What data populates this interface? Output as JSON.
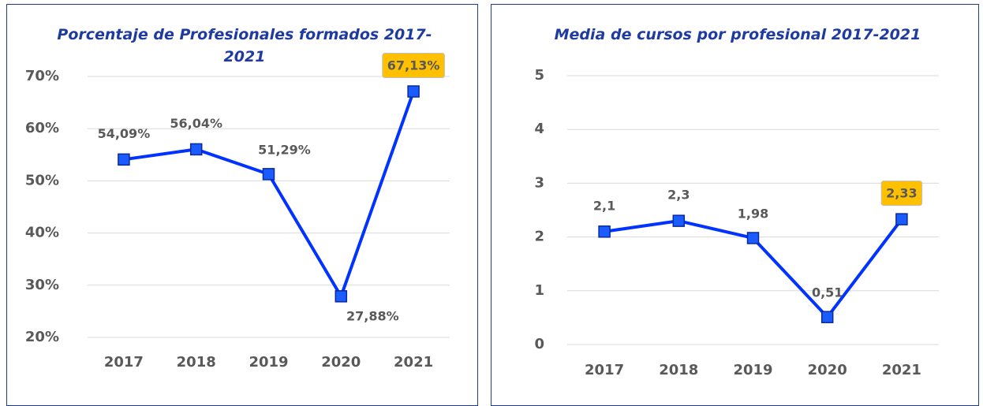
{
  "chart_data": [
    {
      "type": "line",
      "title": "Porcentaje de Profesionales formados 2017-2021",
      "categories": [
        "2017",
        "2018",
        "2019",
        "2020",
        "2021"
      ],
      "series": [
        {
          "color": "#0033ff",
          "values": [
            54.09,
            56.04,
            51.29,
            27.88,
            67.13
          ],
          "value_labels": [
            "54,09%",
            "56,04%",
            "51,29%",
            "27,88%",
            "67,13%"
          ]
        }
      ],
      "ylim": [
        20,
        70
      ],
      "yticks": [
        {
          "value": 20,
          "label": "20%"
        },
        {
          "value": 30,
          "label": "30%"
        },
        {
          "value": 40,
          "label": "40%"
        },
        {
          "value": 50,
          "label": "50%"
        },
        {
          "value": 60,
          "label": "60%"
        },
        {
          "value": 70,
          "label": "70%"
        }
      ],
      "grid": true
    },
    {
      "type": "line",
      "title": "Media de cursos por profesional 2017-2021",
      "categories": [
        "2017",
        "2018",
        "2019",
        "2020",
        "2021"
      ],
      "series": [
        {
          "color": "#0033ff",
          "values": [
            2.1,
            2.3,
            1.98,
            0.51,
            2.33
          ],
          "value_labels": [
            "2,1",
            "2,3",
            "1,98",
            "0,51",
            "2,33"
          ]
        }
      ],
      "ylim": [
        0,
        5
      ],
      "yticks": [
        0,
        1,
        2,
        3,
        4,
        5
      ],
      "grid": true
    }
  ]
}
